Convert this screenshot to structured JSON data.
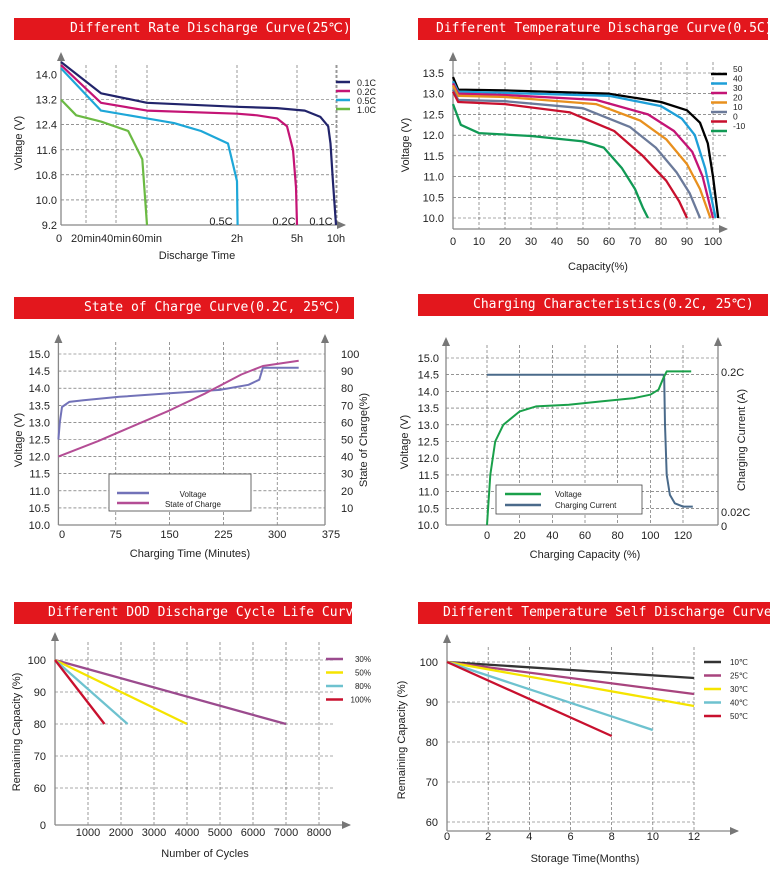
{
  "chart_data": [
    {
      "id": "rate",
      "type": "line",
      "title": "Different Rate Discharge Curve(25℃)",
      "ylabel": "Voltage (V)",
      "xlabel": "Discharge Time",
      "ylim": [
        9.2,
        14.4
      ],
      "yticks": [
        "14.0",
        "13.2",
        "12.4",
        "11.6",
        "10.8",
        "10.0",
        "9.2"
      ],
      "xticks": [
        "0",
        "20min",
        "40min",
        "60min",
        "2h",
        "5h",
        "10h"
      ],
      "annotations": [
        "0.5C",
        "0.2C",
        "0.1C"
      ],
      "grid": true,
      "legend": "right",
      "series": [
        {
          "name": "0.1C",
          "color": "#22246b",
          "x": [
            0,
            0.5,
            1,
            2,
            4,
            6,
            8,
            9,
            9.3,
            9.6,
            10
          ],
          "y": [
            14.4,
            13.4,
            13.1,
            12.97,
            12.93,
            12.85,
            12.65,
            12.35,
            11.8,
            10.6,
            9.2
          ]
        },
        {
          "name": "0.2C",
          "color": "#c41475",
          "x": [
            0,
            0.5,
            1,
            2,
            3,
            4.0,
            4.5,
            4.8,
            4.95,
            5
          ],
          "y": [
            14.3,
            13.1,
            12.85,
            12.75,
            12.7,
            12.6,
            12.35,
            11.6,
            10.4,
            9.2
          ]
        },
        {
          "name": "0.5C",
          "color": "#1ea7d8",
          "x": [
            0,
            0.5,
            1,
            1.3,
            1.6,
            1.9,
            2.0,
            2.03
          ],
          "y": [
            14.2,
            12.85,
            12.6,
            12.45,
            12.2,
            11.8,
            10.6,
            9.2
          ]
        },
        {
          "name": "1.0C",
          "color": "#6bba43",
          "x": [
            0,
            0.2,
            0.5,
            0.8,
            0.95,
            1.0
          ],
          "y": [
            13.2,
            12.7,
            12.5,
            12.2,
            11.3,
            9.2
          ]
        }
      ]
    },
    {
      "id": "temp",
      "type": "line",
      "title": "Different Temperature Discharge Curve(0.5C)",
      "ylabel": "Voltage (V)",
      "xlabel": "Capacity(%)",
      "ylim": [
        9.85,
        13.6
      ],
      "xlim": [
        0,
        105
      ],
      "yticks": [
        "13.5",
        "13.0",
        "12.5",
        "12.0",
        "11.5",
        "11.0",
        "10.5",
        "10.0"
      ],
      "xticks": [
        "0",
        "10",
        "20",
        "30",
        "40",
        "50",
        "60",
        "70",
        "80",
        "90",
        "100"
      ],
      "grid": true,
      "legend": "right",
      "series": [
        {
          "name": "50",
          "color": "#000000",
          "x": [
            0,
            2,
            20,
            60,
            80,
            90,
            95,
            98,
            100,
            102
          ],
          "y": [
            13.4,
            13.1,
            13.08,
            13.0,
            12.8,
            12.6,
            12.3,
            11.8,
            11.0,
            10.0
          ]
        },
        {
          "name": "40",
          "color": "#1e9fd8",
          "x": [
            0,
            2,
            20,
            60,
            80,
            88,
            93,
            97,
            101
          ],
          "y": [
            13.3,
            13.05,
            13.02,
            12.95,
            12.7,
            12.4,
            12.0,
            11.2,
            10.0
          ]
        },
        {
          "name": "30",
          "color": "#c41475",
          "x": [
            0,
            2,
            20,
            55,
            75,
            85,
            92,
            96,
            100
          ],
          "y": [
            13.25,
            13.0,
            12.97,
            12.85,
            12.5,
            12.1,
            11.6,
            11.0,
            10.0
          ]
        },
        {
          "name": "20",
          "color": "#e8901e",
          "x": [
            0,
            2,
            20,
            55,
            72,
            82,
            90,
            95,
            99
          ],
          "y": [
            13.2,
            12.95,
            12.92,
            12.75,
            12.35,
            11.9,
            11.3,
            10.7,
            10.0
          ]
        },
        {
          "name": "10",
          "color": "#6b7a9a",
          "x": [
            0,
            2,
            20,
            50,
            68,
            78,
            86,
            91,
            95
          ],
          "y": [
            13.1,
            12.85,
            12.82,
            12.65,
            12.2,
            11.7,
            11.1,
            10.6,
            10.0
          ]
        },
        {
          "name": "0",
          "color": "#c8102e",
          "x": [
            0,
            2,
            20,
            45,
            62,
            73,
            82,
            87,
            90
          ],
          "y": [
            13.05,
            12.8,
            12.75,
            12.55,
            12.1,
            11.5,
            10.9,
            10.4,
            10.0
          ]
        },
        {
          "name": "-10",
          "color": "#119a55",
          "x": [
            0,
            3,
            10,
            30,
            50,
            58,
            65,
            70,
            73,
            75
          ],
          "y": [
            12.75,
            12.25,
            12.05,
            11.98,
            11.85,
            11.7,
            11.2,
            10.7,
            10.25,
            10.0
          ]
        }
      ]
    },
    {
      "id": "soc",
      "type": "line",
      "title": "State of Charge Curve(0.2C, 25℃)",
      "ylabel": "Voltage (V)",
      "y2label": "State of Charge(%)",
      "xlabel": "Charging Time (Minutes)",
      "ylim": [
        10.0,
        15.0
      ],
      "y2lim": [
        0,
        100
      ],
      "xlim": [
        -5,
        375
      ],
      "yticks": [
        "15.0",
        "14.5",
        "14.0",
        "13.5",
        "13.0",
        "12.5",
        "12.0",
        "11.5",
        "11.0",
        "10.5",
        "10.0"
      ],
      "y2ticks": [
        "100",
        "90",
        "80",
        "70",
        "60",
        "50",
        "40",
        "30",
        "20",
        "10"
      ],
      "xticks": [
        "0",
        "75",
        "150",
        "225",
        "300",
        "375"
      ],
      "grid": true,
      "legend": "bottom-left",
      "series": [
        {
          "name": "Voltage",
          "color": "#7272b8",
          "axis": "y",
          "x": [
            -5,
            -3,
            0,
            10,
            30,
            80,
            150,
            220,
            260,
            275,
            280,
            330
          ],
          "y": [
            12.5,
            13.0,
            13.45,
            13.6,
            13.65,
            13.75,
            13.85,
            13.95,
            14.1,
            14.25,
            14.6,
            14.6
          ]
        },
        {
          "name": "State of Charge",
          "color": "#b44d95",
          "axis": "y2",
          "x": [
            -5,
            50,
            100,
            150,
            200,
            250,
            280,
            330
          ],
          "y": [
            40,
            49,
            58,
            67,
            77,
            88,
            93,
            96
          ]
        }
      ]
    },
    {
      "id": "charging",
      "type": "line",
      "title": "Charging Characteristics(0.2C, 25℃)",
      "ylabel": "Voltage (V)",
      "y2label": "Charging Current (A)",
      "xlabel": "Charging Capacity (%)",
      "ylim": [
        10.0,
        15.0
      ],
      "xlim": [
        -15,
        140
      ],
      "yticks": [
        "15.0",
        "14.5",
        "14.0",
        "13.5",
        "13.0",
        "12.5",
        "12.0",
        "11.5",
        "11.0",
        "10.5",
        "10.0"
      ],
      "y2ticks": [
        "0.2C",
        "0.02C",
        "0"
      ],
      "xticks": [
        "0",
        "20",
        "40",
        "60",
        "80",
        "100",
        "120"
      ],
      "grid": true,
      "legend": "bottom-left",
      "series": [
        {
          "name": "Voltage",
          "color": "#1aa04a",
          "axis": "y",
          "x": [
            0,
            2,
            5,
            10,
            20,
            30,
            50,
            70,
            90,
            100,
            105,
            108,
            110,
            125
          ],
          "y": [
            10.0,
            11.5,
            12.5,
            13.0,
            13.4,
            13.55,
            13.6,
            13.7,
            13.8,
            13.9,
            14.05,
            14.4,
            14.6,
            14.6
          ]
        },
        {
          "name": "Charging Current",
          "color": "#4a6a8a",
          "axis": "current",
          "x": [
            0,
            108,
            108.5,
            109,
            110,
            112,
            115,
            120,
            126
          ],
          "y": [
            14.5,
            14.5,
            14.4,
            13.0,
            11.5,
            10.9,
            10.65,
            10.55,
            10.55
          ]
        }
      ]
    },
    {
      "id": "dod",
      "type": "line",
      "title": "Different DOD Discharge Cycle Life Curve",
      "ylabel": "Remaining Capacity (%)",
      "xlabel": "Number of Cycles",
      "ylim": [
        60,
        102
      ],
      "xlim": [
        0,
        8500
      ],
      "yticks": [
        "100",
        "90",
        "80",
        "70",
        "60"
      ],
      "y0label": "0",
      "xticks": [
        "1000",
        "2000",
        "3000",
        "4000",
        "5000",
        "6000",
        "7000",
        "8000"
      ],
      "grid": true,
      "legend": "right",
      "series": [
        {
          "name": "30%",
          "color": "#9b4b8e",
          "x": [
            0,
            7000
          ],
          "y": [
            100,
            80
          ]
        },
        {
          "name": "50%",
          "color": "#f5e400",
          "x": [
            0,
            4000
          ],
          "y": [
            100,
            80
          ]
        },
        {
          "name": "80%",
          "color": "#6ec2cf",
          "x": [
            0,
            2200
          ],
          "y": [
            100,
            80
          ]
        },
        {
          "name": "100%",
          "color": "#c8102e",
          "x": [
            0,
            1500
          ],
          "y": [
            100,
            80
          ]
        }
      ]
    },
    {
      "id": "selfdis",
      "type": "line",
      "title": "Different Temperature Self Discharge Curve",
      "ylabel": "Remaining Capacity (%)",
      "xlabel": "Storage Time(Months)",
      "ylim": [
        58,
        103
      ],
      "xlim": [
        0,
        13
      ],
      "yticks": [
        "100",
        "90",
        "80",
        "70",
        "60"
      ],
      "xticks": [
        "0",
        "2",
        "4",
        "6",
        "8",
        "10",
        "12"
      ],
      "grid": true,
      "legend": "right",
      "series": [
        {
          "name": "10℃",
          "color": "#333333",
          "x": [
            0,
            12
          ],
          "y": [
            100,
            96
          ]
        },
        {
          "name": "25℃",
          "color": "#a8447e",
          "x": [
            0,
            12
          ],
          "y": [
            100,
            92
          ]
        },
        {
          "name": "30℃",
          "color": "#f5e400",
          "x": [
            0,
            12
          ],
          "y": [
            100,
            89
          ]
        },
        {
          "name": "40℃",
          "color": "#6ec2cf",
          "x": [
            0,
            10
          ],
          "y": [
            100,
            83
          ]
        },
        {
          "name": "50℃",
          "color": "#c8102e",
          "x": [
            0,
            8
          ],
          "y": [
            100,
            81.5
          ]
        }
      ]
    }
  ]
}
